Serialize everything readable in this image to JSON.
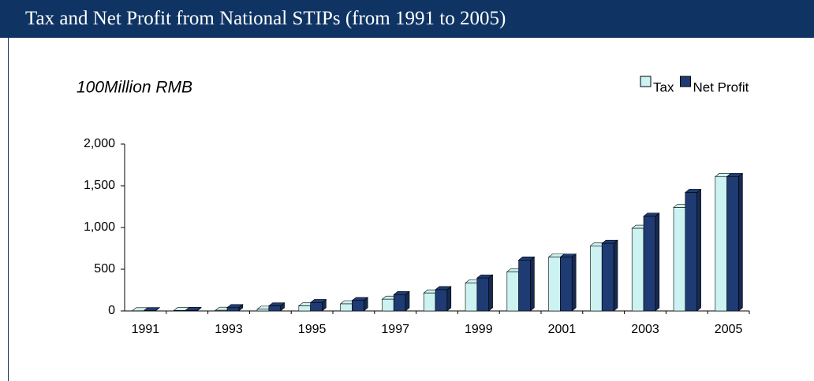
{
  "chart_data": {
    "type": "bar",
    "title": "Tax and Net Profit from National STIPs (from 1991 to 2005)",
    "y_label": "100Million RMB",
    "categories": [
      "1991",
      null,
      "1993",
      null,
      "1995",
      null,
      "1997",
      null,
      "1999",
      null,
      "2001",
      null,
      "2003",
      null,
      "2005"
    ],
    "series": [
      {
        "name": "Tax",
        "color": "#ccf2f2",
        "values": [
          2,
          5,
          8,
          20,
          60,
          85,
          140,
          215,
          335,
          470,
          645,
          780,
          990,
          1240,
          1610
        ]
      },
      {
        "name": "Net Profit",
        "color": "#1f3b73",
        "values": [
          3,
          7,
          40,
          60,
          100,
          125,
          195,
          255,
          395,
          610,
          645,
          810,
          1135,
          1420,
          1610
        ]
      }
    ],
    "ylim": [
      0,
      2000
    ],
    "yticks": [
      0,
      500,
      {
        "value": 1000,
        "label": "1,000"
      },
      {
        "value": 1500,
        "label": "1,500"
      },
      {
        "value": 2000,
        "label": "2,000"
      }
    ],
    "legend": "top-right"
  }
}
